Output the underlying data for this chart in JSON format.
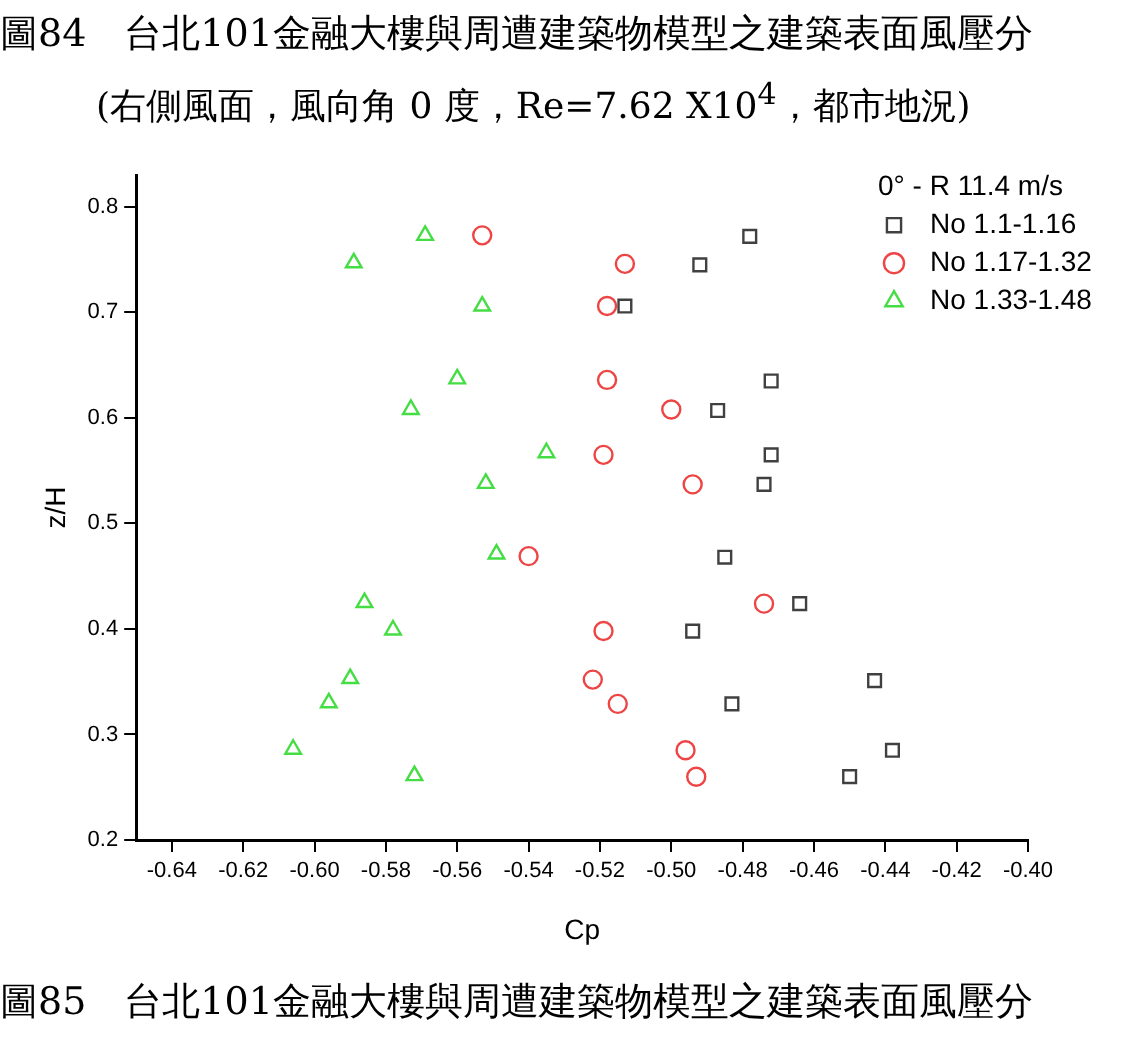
{
  "chart_data": {
    "type": "scatter",
    "title": "圖84　台北101金融大樓與周遭建築物模型之建築表面風壓分",
    "subtitle": "(右側風面，風向角 0 度，Re=7.62 X10$^{4}$，都市地況)",
    "xlabel": "Cp",
    "ylabel": "z/H",
    "legend_title": "0° - R 11.4 m/s",
    "legend": "top right",
    "grid": false,
    "annotations": [
      "圖85　台北101金融大樓與周遭建築物模型之建築表面風壓分"
    ],
    "xlim": [
      -0.65,
      -0.4
    ],
    "ylim": [
      0.2,
      0.83
    ],
    "xticks": [
      -0.64,
      -0.62,
      {
        "value": -0.6,
        "label": "-0.60"
      },
      -0.58,
      -0.56,
      -0.54,
      -0.52,
      {
        "value": -0.5,
        "label": "-0.50"
      },
      -0.48,
      -0.46,
      -0.44,
      -0.42,
      {
        "value": -0.4,
        "label": "-0.40"
      }
    ],
    "yticks": [
      0.2,
      0.3,
      0.4,
      0.5,
      0.6,
      0.7,
      0.8
    ],
    "series": [
      {
        "name": "No 1.1-1.16",
        "color": "#404040",
        "marker": "square",
        "x": [
          -0.478,
          -0.492,
          -0.513,
          -0.472,
          -0.487,
          -0.472,
          -0.474,
          -0.485,
          -0.464,
          -0.494,
          -0.443,
          -0.483,
          -0.438,
          -0.45
        ],
        "values": [
          0.772,
          0.745,
          0.706,
          0.635,
          0.607,
          0.565,
          0.537,
          0.468,
          0.424,
          0.398,
          0.351,
          0.329,
          0.285,
          0.26
        ]
      },
      {
        "name": "No 1.17-1.32",
        "color": "#ee4444",
        "marker": "circle",
        "x": [
          -0.553,
          -0.513,
          -0.518,
          -0.518,
          -0.5,
          -0.519,
          -0.494,
          -0.54,
          -0.474,
          -0.519,
          -0.522,
          -0.515,
          -0.496,
          -0.493
        ],
        "values": [
          0.773,
          0.746,
          0.706,
          0.636,
          0.608,
          0.565,
          0.537,
          0.469,
          0.424,
          0.398,
          0.352,
          0.329,
          0.285,
          0.26
        ]
      },
      {
        "name": "No 1.33-1.48",
        "color": "#44dd44",
        "marker": "triangle",
        "x": [
          -0.569,
          -0.589,
          -0.553,
          -0.56,
          -0.573,
          -0.535,
          -0.552,
          -0.549,
          -0.586,
          -0.578,
          -0.59,
          -0.596,
          -0.606,
          -0.572
        ],
        "values": [
          0.773,
          0.747,
          0.706,
          0.637,
          0.608,
          0.567,
          0.538,
          0.471,
          0.425,
          0.399,
          0.353,
          0.33,
          0.286,
          0.261
        ]
      }
    ]
  }
}
